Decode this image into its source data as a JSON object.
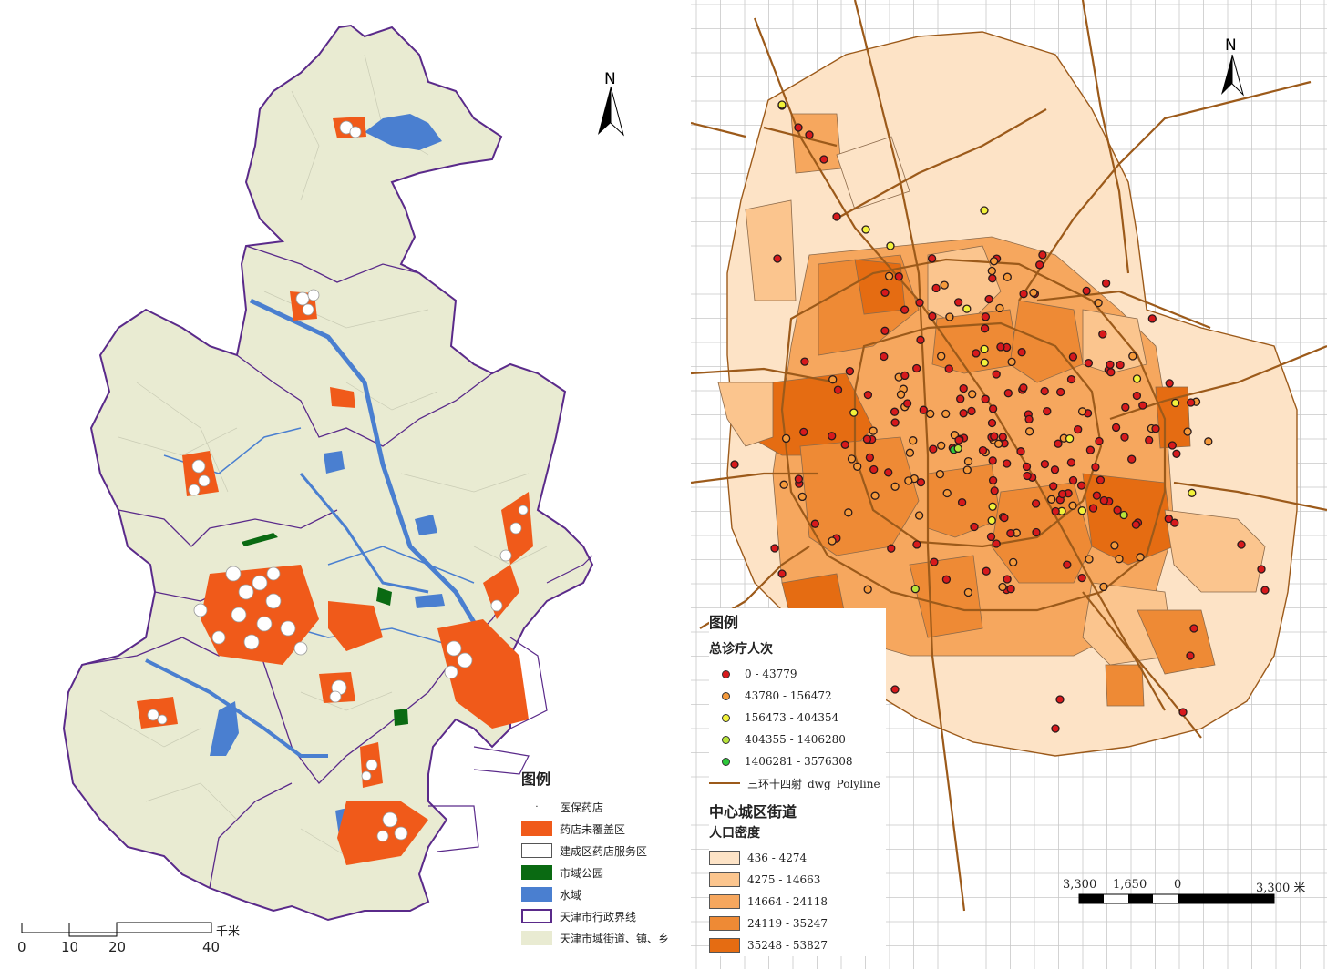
{
  "left_map": {
    "north": "N",
    "legend": {
      "title": "图例",
      "items": [
        {
          "label": "医保药店",
          "kind": "point",
          "color": "#666666"
        },
        {
          "label": "药店未覆盖区",
          "kind": "fill",
          "color": "#f05a1a"
        },
        {
          "label": "建成区药店服务区",
          "kind": "fill",
          "color": "#ffffff"
        },
        {
          "label": "市域公园",
          "kind": "fill",
          "color": "#0a6a12"
        },
        {
          "label": "水域",
          "kind": "fill",
          "color": "#4a7fd0"
        },
        {
          "label": "天津市行政界线",
          "kind": "outline",
          "color": "#5a2a8a"
        },
        {
          "label": "天津市域街道、镇、乡",
          "kind": "fill",
          "color": "#e9ebd2"
        }
      ]
    },
    "scale": {
      "unit": "千米",
      "ticks": [
        "0",
        "10",
        "20",
        "40"
      ]
    }
  },
  "right_map": {
    "north": "N",
    "legend": {
      "title": "图例",
      "visits_title": "总诊疗人次",
      "visits": [
        {
          "label": "0 - 43779",
          "color": "#d7191c"
        },
        {
          "label": "43780 - 156472",
          "color": "#f59a3b"
        },
        {
          "label": "156473 - 404354",
          "color": "#f2f23a"
        },
        {
          "label": "404355 - 1406280",
          "color": "#b8e43a"
        },
        {
          "label": "1406281 - 3576308",
          "color": "#2dc83a"
        }
      ],
      "road_label": "三环十四射_dwg_Polyline",
      "road_color": "#9c5a1a",
      "district_title": "中心城区街道",
      "density_title": "人口密度",
      "density": [
        {
          "label": "436 - 4274",
          "color": "#fde3c6"
        },
        {
          "label": "4275 - 14663",
          "color": "#fbc58e"
        },
        {
          "label": "14664 - 24118",
          "color": "#f6a75e"
        },
        {
          "label": "24119 - 35247",
          "color": "#ee8a35"
        },
        {
          "label": "35248 - 53827",
          "color": "#e56c12"
        }
      ]
    },
    "scale": {
      "ticks": [
        "3,300",
        "1,650",
        "0",
        "3,300 米"
      ]
    }
  }
}
